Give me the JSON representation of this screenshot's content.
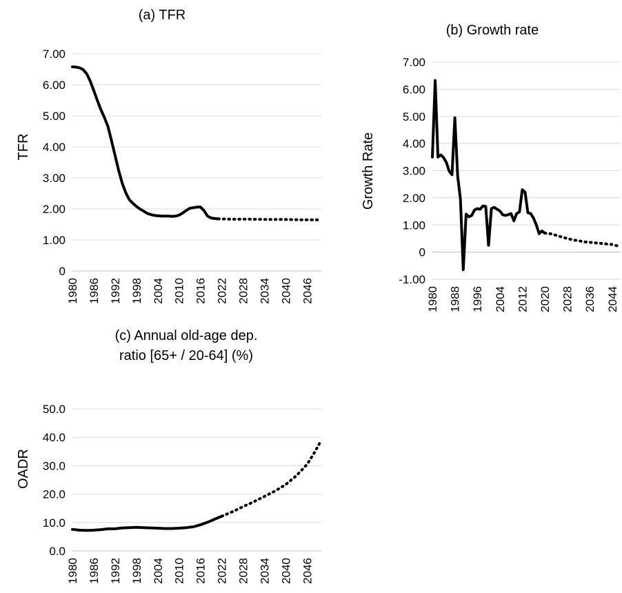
{
  "chart_data": [
    {
      "id": "tfr",
      "type": "line",
      "title": "(a) TFR",
      "subtitle": "",
      "ylabel": "TFR",
      "xlabel": "",
      "ylim": [
        0,
        7
      ],
      "y_ticks": [
        "0",
        "1.00",
        "2.00",
        "3.00",
        "4.00",
        "5.00",
        "6.00",
        "7.00"
      ],
      "y_tick_values": [
        0,
        1,
        2,
        3,
        4,
        5,
        6,
        7
      ],
      "xlim": [
        1980,
        2050
      ],
      "x_ticks": [
        "1980",
        "1986",
        "1992",
        "1998",
        "2004",
        "2010",
        "2016",
        "2022",
        "2028",
        "2034",
        "2040",
        "2046"
      ],
      "grid": true,
      "legend": "none",
      "series": [
        {
          "style": "solid",
          "points": [
            [
              1980,
              6.58
            ],
            [
              1981,
              6.57
            ],
            [
              1982,
              6.55
            ],
            [
              1983,
              6.49
            ],
            [
              1984,
              6.36
            ],
            [
              1985,
              6.12
            ],
            [
              1986,
              5.82
            ],
            [
              1987,
              5.5
            ],
            [
              1988,
              5.2
            ],
            [
              1989,
              4.95
            ],
            [
              1990,
              4.65
            ],
            [
              1991,
              4.2
            ],
            [
              1992,
              3.72
            ],
            [
              1993,
              3.25
            ],
            [
              1994,
              2.83
            ],
            [
              1995,
              2.52
            ],
            [
              1996,
              2.3
            ],
            [
              1997,
              2.18
            ],
            [
              1998,
              2.08
            ],
            [
              1999,
              2.0
            ],
            [
              2000,
              1.93
            ],
            [
              2001,
              1.86
            ],
            [
              2002,
              1.82
            ],
            [
              2003,
              1.79
            ],
            [
              2004,
              1.78
            ],
            [
              2005,
              1.77
            ],
            [
              2006,
              1.77
            ],
            [
              2007,
              1.77
            ],
            [
              2008,
              1.76
            ],
            [
              2009,
              1.77
            ],
            [
              2010,
              1.8
            ],
            [
              2011,
              1.87
            ],
            [
              2012,
              1.95
            ],
            [
              2013,
              2.02
            ],
            [
              2014,
              2.04
            ],
            [
              2015,
              2.06
            ],
            [
              2016,
              2.06
            ],
            [
              2017,
              1.95
            ],
            [
              2018,
              1.77
            ],
            [
              2019,
              1.71
            ],
            [
              2020,
              1.69
            ],
            [
              2021,
              1.68
            ]
          ]
        },
        {
          "style": "dotted",
          "points": [
            [
              2021,
              1.68
            ],
            [
              2025,
              1.67
            ],
            [
              2030,
              1.67
            ],
            [
              2035,
              1.66
            ],
            [
              2040,
              1.66
            ],
            [
              2045,
              1.65
            ],
            [
              2050,
              1.65
            ]
          ]
        }
      ]
    },
    {
      "id": "growth",
      "type": "line",
      "title": "(b) Growth rate",
      "subtitle": "",
      "ylabel": "Growth Rate",
      "xlabel": "",
      "ylim": [
        -1,
        7
      ],
      "y_ticks": [
        "-1.00",
        "0",
        "1.00",
        "2.00",
        "3.00",
        "4.00",
        "5.00",
        "6.00",
        "7.00"
      ],
      "y_tick_values": [
        -1,
        0,
        1,
        2,
        3,
        4,
        5,
        6,
        7
      ],
      "xlim": [
        1980,
        2047
      ],
      "x_ticks": [
        "1980",
        "1988",
        "1996",
        "2004",
        "2012",
        "2020",
        "2028",
        "2036",
        "2044"
      ],
      "grid": true,
      "legend": "none",
      "series": [
        {
          "style": "solid",
          "points": [
            [
              1980,
              3.5
            ],
            [
              1981,
              6.32
            ],
            [
              1982,
              3.5
            ],
            [
              1983,
              3.58
            ],
            [
              1984,
              3.48
            ],
            [
              1985,
              3.3
            ],
            [
              1986,
              2.98
            ],
            [
              1987,
              2.85
            ],
            [
              1988,
              4.95
            ],
            [
              1989,
              2.8
            ],
            [
              1990,
              1.95
            ],
            [
              1991,
              -0.65
            ],
            [
              1992,
              1.4
            ],
            [
              1993,
              1.3
            ],
            [
              1994,
              1.35
            ],
            [
              1995,
              1.55
            ],
            [
              1996,
              1.6
            ],
            [
              1997,
              1.58
            ],
            [
              1998,
              1.7
            ],
            [
              1999,
              1.68
            ],
            [
              2000,
              0.25
            ],
            [
              2001,
              1.6
            ],
            [
              2002,
              1.65
            ],
            [
              2003,
              1.58
            ],
            [
              2004,
              1.52
            ],
            [
              2005,
              1.38
            ],
            [
              2006,
              1.35
            ],
            [
              2007,
              1.38
            ],
            [
              2008,
              1.42
            ],
            [
              2009,
              1.15
            ],
            [
              2010,
              1.42
            ],
            [
              2011,
              1.48
            ],
            [
              2012,
              2.3
            ],
            [
              2013,
              2.2
            ],
            [
              2014,
              1.45
            ],
            [
              2015,
              1.42
            ],
            [
              2016,
              1.25
            ],
            [
              2017,
              1.0
            ],
            [
              2018,
              0.68
            ],
            [
              2019,
              0.78
            ],
            [
              2020,
              0.7
            ]
          ]
        },
        {
          "style": "dotted",
          "points": [
            [
              2020,
              0.7
            ],
            [
              2022,
              0.68
            ],
            [
              2024,
              0.62
            ],
            [
              2026,
              0.56
            ],
            [
              2028,
              0.5
            ],
            [
              2030,
              0.45
            ],
            [
              2032,
              0.42
            ],
            [
              2034,
              0.38
            ],
            [
              2036,
              0.36
            ],
            [
              2038,
              0.34
            ],
            [
              2040,
              0.32
            ],
            [
              2042,
              0.3
            ],
            [
              2044,
              0.28
            ],
            [
              2047,
              0.2
            ]
          ]
        }
      ]
    },
    {
      "id": "oadr",
      "type": "line",
      "title": "(c) Annual old-age dep.",
      "subtitle": "ratio [65+ / 20-64] (%)",
      "ylabel": "OADR",
      "xlabel": "",
      "ylim": [
        0,
        50
      ],
      "y_ticks": [
        "0.0",
        "10.0",
        "20.0",
        "30.0",
        "40.0",
        "50.0"
      ],
      "y_tick_values": [
        0,
        10,
        20,
        30,
        40,
        50
      ],
      "xlim": [
        1980,
        2050
      ],
      "x_ticks": [
        "1980",
        "1986",
        "1992",
        "1998",
        "2004",
        "2010",
        "2016",
        "2022",
        "2028",
        "2034",
        "2040",
        "2046"
      ],
      "grid": true,
      "legend": "none",
      "series": [
        {
          "style": "solid",
          "points": [
            [
              1980,
              7.6
            ],
            [
              1982,
              7.3
            ],
            [
              1984,
              7.2
            ],
            [
              1986,
              7.3
            ],
            [
              1988,
              7.5
            ],
            [
              1990,
              7.8
            ],
            [
              1992,
              7.8
            ],
            [
              1994,
              8.1
            ],
            [
              1996,
              8.2
            ],
            [
              1998,
              8.3
            ],
            [
              2000,
              8.2
            ],
            [
              2002,
              8.1
            ],
            [
              2004,
              8.0
            ],
            [
              2006,
              7.9
            ],
            [
              2008,
              7.9
            ],
            [
              2010,
              8.0
            ],
            [
              2012,
              8.2
            ],
            [
              2014,
              8.5
            ],
            [
              2016,
              9.2
            ],
            [
              2018,
              10.1
            ],
            [
              2020,
              11.2
            ],
            [
              2022,
              12.2
            ]
          ]
        },
        {
          "style": "dotted",
          "points": [
            [
              2022,
              12.2
            ],
            [
              2025,
              13.8
            ],
            [
              2028,
              15.6
            ],
            [
              2031,
              17.3
            ],
            [
              2034,
              19.2
            ],
            [
              2037,
              21.1
            ],
            [
              2040,
              23.4
            ],
            [
              2043,
              26.5
            ],
            [
              2046,
              30.5
            ],
            [
              2048,
              34.5
            ],
            [
              2050,
              39.0
            ]
          ]
        }
      ]
    }
  ]
}
